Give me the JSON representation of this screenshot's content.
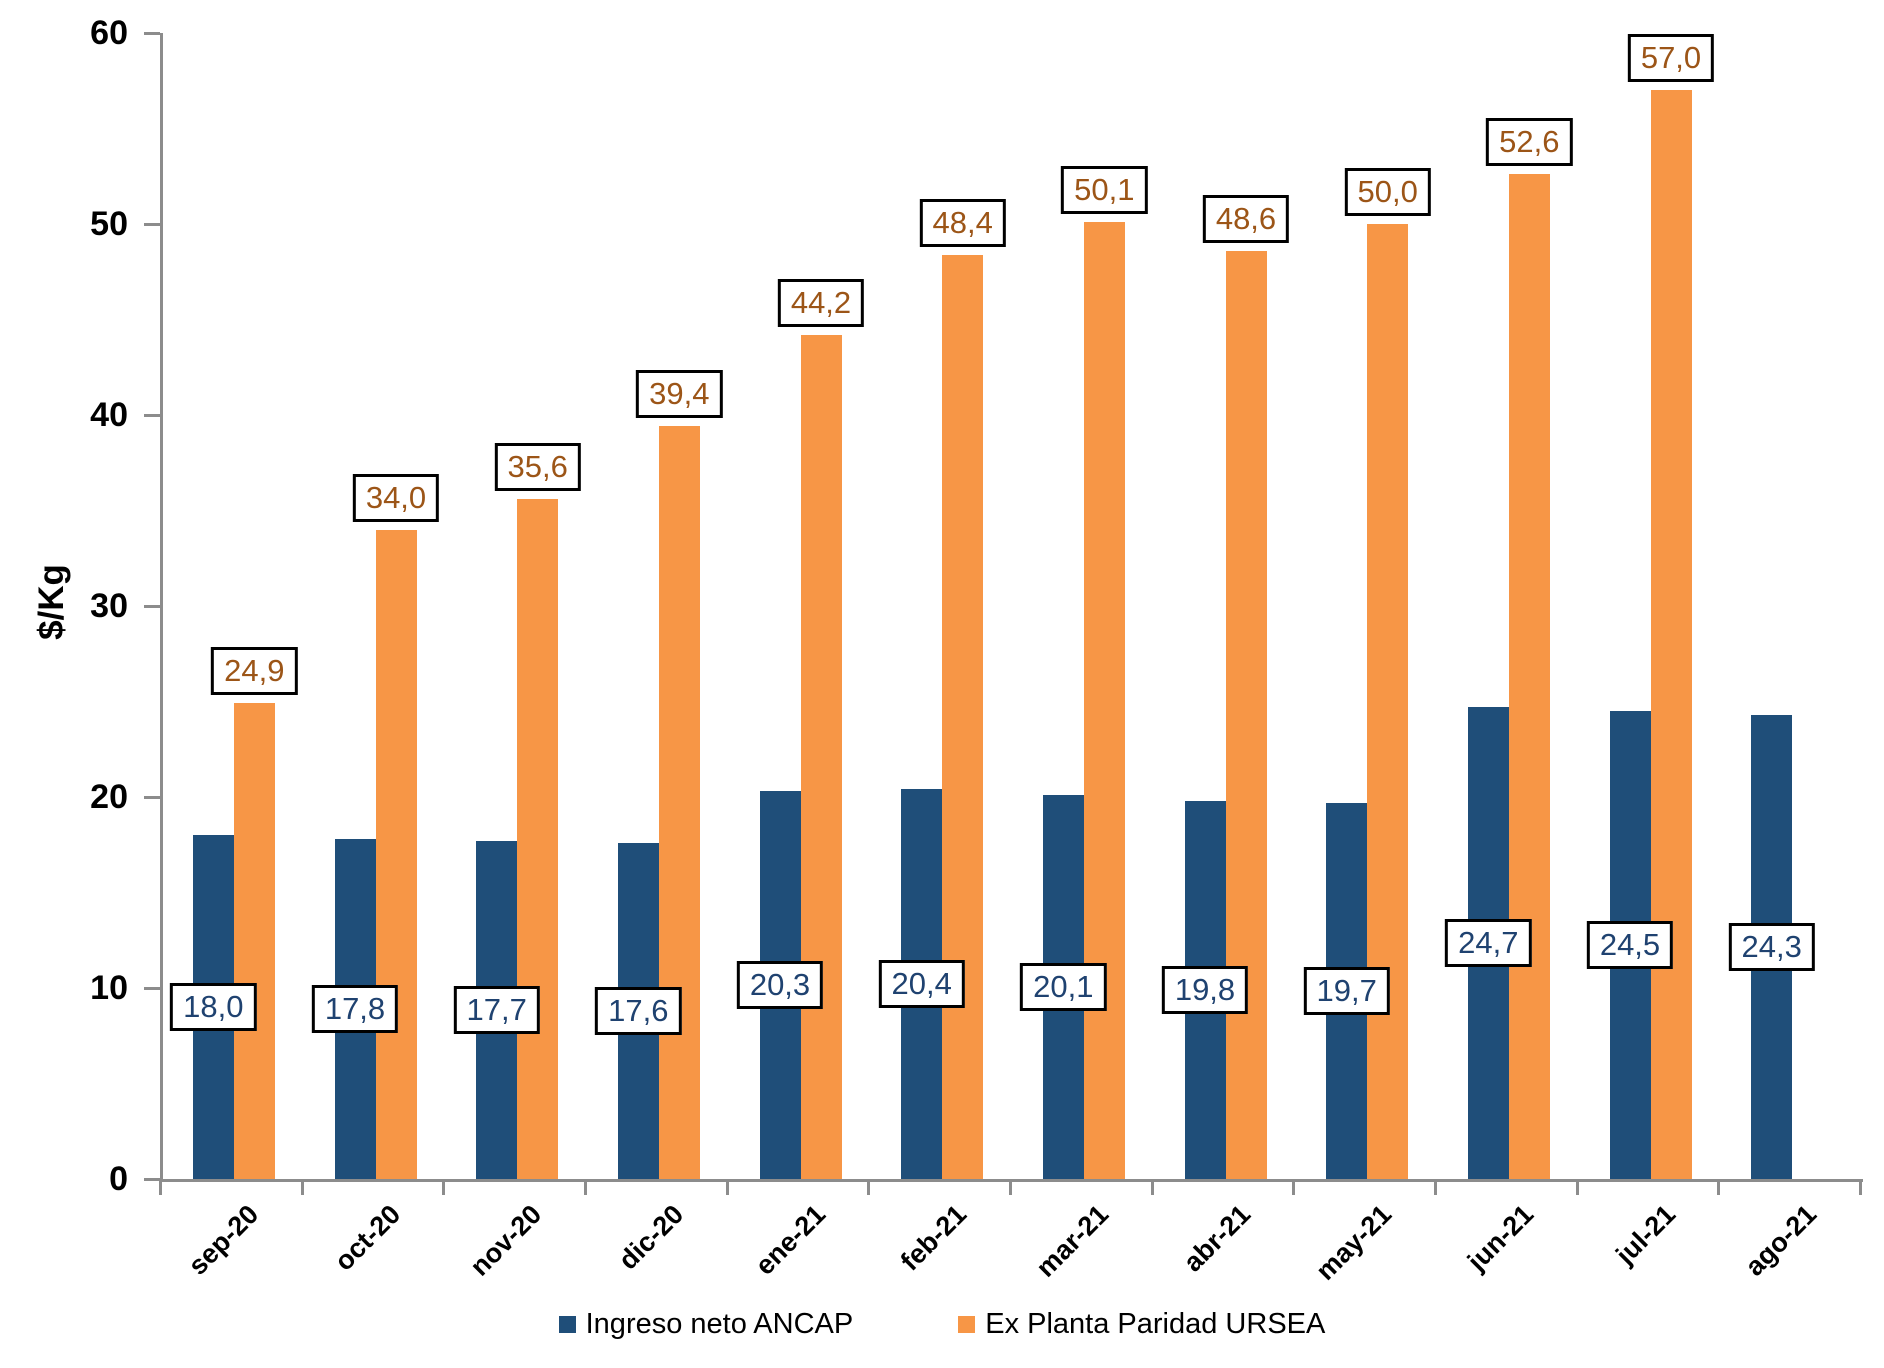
{
  "chart_data": {
    "type": "bar",
    "title": "",
    "xlabel": "",
    "ylabel": "$/Kg",
    "ylim": [
      0,
      60
    ],
    "yticks": [
      0,
      10,
      20,
      30,
      40,
      50,
      60
    ],
    "grid": false,
    "legend_position": "bottom",
    "axis_color": "#8C8C8C",
    "categories": [
      "sep-20",
      "oct-20",
      "nov-20",
      "dic-20",
      "ene-21",
      "feb-21",
      "mar-21",
      "abr-21",
      "may-21",
      "jun-21",
      "jul-21",
      "ago-21"
    ],
    "series": [
      {
        "name": "Ingreso neto ANCAP",
        "color": "#1F4E79",
        "label_text_color": "#1F4270",
        "label_position": "inside-center",
        "values": [
          18.0,
          17.8,
          17.7,
          17.6,
          20.3,
          20.4,
          20.1,
          19.8,
          19.7,
          24.7,
          24.5,
          24.3
        ],
        "labels": [
          "18,0",
          "17,8",
          "17,7",
          "17,6",
          "20,3",
          "20,4",
          "20,1",
          "19,8",
          "19,7",
          "24,7",
          "24,5",
          "24,3"
        ]
      },
      {
        "name": "Ex Planta Paridad URSEA",
        "color": "#F79646",
        "label_text_color": "#9C5517",
        "label_position": "outside-end",
        "values": [
          24.9,
          34.0,
          35.6,
          39.4,
          44.2,
          48.4,
          50.1,
          48.6,
          50.0,
          52.6,
          57.0,
          null
        ],
        "labels": [
          "24,9",
          "34,0",
          "35,6",
          "39,4",
          "44,2",
          "48,4",
          "50,1",
          "48,6",
          "50,0",
          "52,6",
          "57,0",
          null
        ]
      }
    ]
  }
}
